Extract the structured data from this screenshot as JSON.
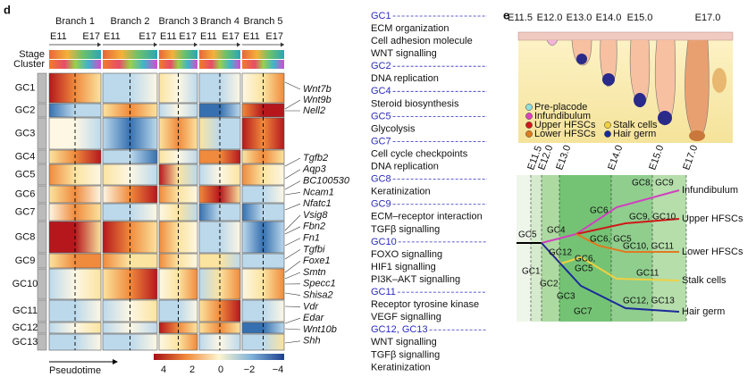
{
  "panel_d": {
    "label": "d",
    "branches": [
      "Branch 1",
      "Branch 2",
      "Branch 3",
      "Branch 4",
      "Branch 5"
    ],
    "stage_marks": [
      "E11",
      "E17"
    ],
    "row_labels": [
      "Stage",
      "Cluster"
    ],
    "clusters": [
      "GC1",
      "GC2",
      "GC3",
      "GC4",
      "GC5",
      "GC6",
      "GC7",
      "GC8",
      "GC9",
      "GC10",
      "GC11",
      "GC12",
      "GC13"
    ],
    "genes": [
      "Wnt7b",
      "Wnt9b",
      "Nell2",
      "Tgfb2",
      "Aqp3",
      "BC100530",
      "Ncam1",
      "Nfatc1",
      "Vsig8",
      "Fbn2",
      "Fn1",
      "Tgfbi",
      "Foxe1",
      "Smtn",
      "Specc1",
      "Shisa2",
      "Vdr",
      "Edar",
      "Wnt10b",
      "Shh"
    ],
    "xlabel": "Pseudotime",
    "colorbar_ticks": [
      "4",
      "2",
      "0",
      "−2",
      "−4"
    ]
  },
  "go_terms": [
    {
      "cluster": "GC1",
      "terms": [
        "ECM organization",
        "Cell adhesion molecule",
        "WNT signalling"
      ]
    },
    {
      "cluster": "GC2",
      "terms": [
        "DNA replication"
      ]
    },
    {
      "cluster": "GC4",
      "terms": [
        "Steroid biosynthesis"
      ]
    },
    {
      "cluster": "GC5",
      "terms": [
        "Glycolysis"
      ]
    },
    {
      "cluster": "GC7",
      "terms": [
        "Cell cycle checkpoints",
        "DNA replication"
      ]
    },
    {
      "cluster": "GC8",
      "terms": [
        "Keratinization"
      ]
    },
    {
      "cluster": "GC9",
      "terms": [
        "ECM–receptor interaction",
        "TGFβ signalling"
      ]
    },
    {
      "cluster": "GC10",
      "terms": [
        "FOXO signalling",
        "HIF1 signalling",
        "PI3K–AKT signalling"
      ]
    },
    {
      "cluster": "GC11",
      "terms": [
        "Receptor tyrosine kinase",
        "VEGF signalling"
      ]
    },
    {
      "cluster": "GC12, GC13",
      "terms": [
        "WNT signalling",
        "TGFβ signalling",
        "Keratinization"
      ]
    }
  ],
  "panel_e": {
    "label": "e",
    "stages": [
      "E11.5",
      "E12.0",
      "E13.0",
      "E14.0",
      "E15.0",
      "E17.0"
    ],
    "legend": [
      "Pre-placode",
      "Infundibulum",
      "Upper HFSCs",
      "Stalk cells",
      "Lower HFSCs",
      "Hair germ"
    ],
    "tree_labels": [
      "GC5",
      "GC1",
      "GC2",
      "GC3",
      "GC7",
      "GC4",
      "GC12",
      "GC6",
      "GC6, GC5",
      "GC6,",
      "GC5",
      "GC8, GC9",
      "GC9, GC10",
      "GC10, GC11",
      "GC11",
      "GC12, GC13"
    ],
    "fates": [
      "Infundibulum",
      "Upper HFSCs",
      "Lower HFSCs",
      "Stalk cells",
      "Hair germ"
    ]
  }
}
